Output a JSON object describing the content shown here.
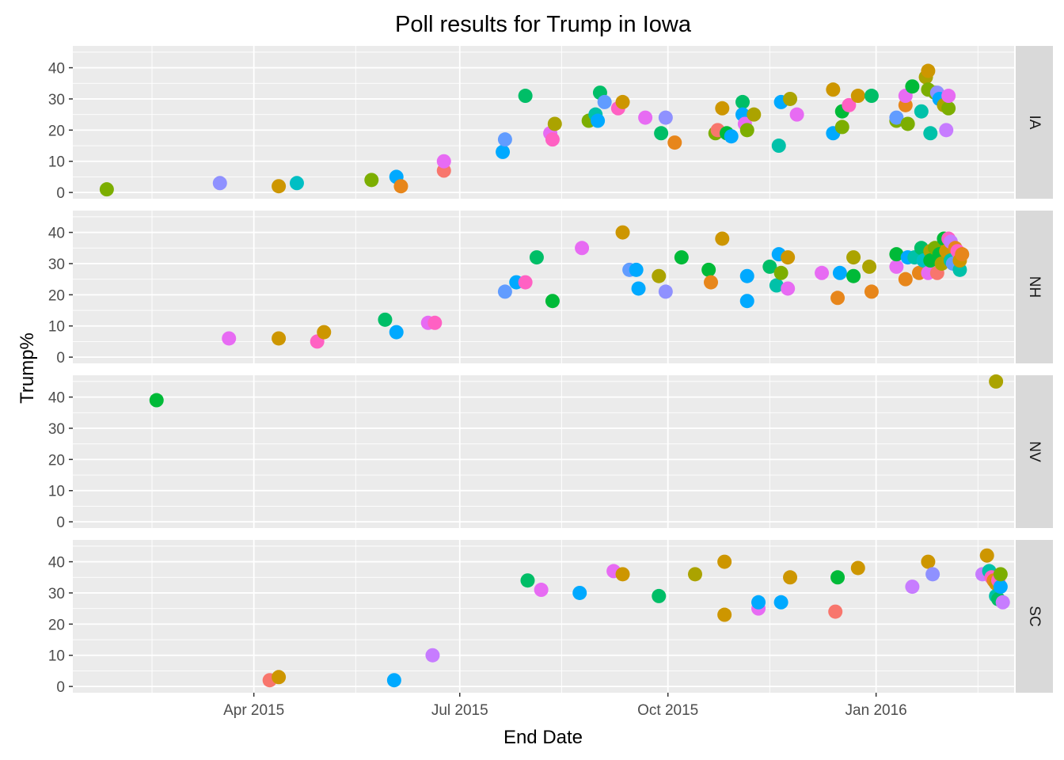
{
  "chart_data": {
    "type": "scatter",
    "title": "Poll results for Trump in Iowa",
    "xlabel": "End Date",
    "ylabel": "Trump%",
    "x_axis": {
      "type": "date",
      "range": [
        "2015-01-11",
        "2016-03-02"
      ],
      "ticks": [
        {
          "date": "2015-04-01",
          "label": "Apr 2015"
        },
        {
          "date": "2015-07-01",
          "label": "Jul 2015"
        },
        {
          "date": "2015-10-01",
          "label": "Oct 2015"
        },
        {
          "date": "2016-01-01",
          "label": "Jan 2016"
        }
      ],
      "minor_ticks": [
        "2015-02-15",
        "2015-05-16",
        "2015-08-15",
        "2015-11-15",
        "2016-02-15"
      ]
    },
    "y_axis": {
      "range": [
        -2,
        47
      ],
      "ticks": [
        0,
        10,
        20,
        30,
        40
      ],
      "minor_ticks": [
        5,
        15,
        25,
        35,
        45
      ]
    },
    "facets": [
      {
        "label": "IA",
        "points": [
          {
            "date": "2015-01-26",
            "y": 1,
            "color": "#7CAE00"
          },
          {
            "date": "2015-03-17",
            "y": 3,
            "color": "#8F91FF"
          },
          {
            "date": "2015-04-12",
            "y": 2,
            "color": "#CD9600"
          },
          {
            "date": "2015-04-20",
            "y": 3,
            "color": "#00BFC4"
          },
          {
            "date": "2015-05-23",
            "y": 4,
            "color": "#7CAE00"
          },
          {
            "date": "2015-06-03",
            "y": 5,
            "color": "#00A9FF"
          },
          {
            "date": "2015-06-05",
            "y": 2,
            "color": "#E7861B"
          },
          {
            "date": "2015-06-24",
            "y": 7,
            "color": "#F8766D"
          },
          {
            "date": "2015-06-24",
            "y": 10,
            "color": "#E76BF3"
          },
          {
            "date": "2015-07-20",
            "y": 13,
            "color": "#00A9FF"
          },
          {
            "date": "2015-07-21",
            "y": 17,
            "color": "#619CFF"
          },
          {
            "date": "2015-07-30",
            "y": 31,
            "color": "#00BE67"
          },
          {
            "date": "2015-08-10",
            "y": 19,
            "color": "#E76BF3"
          },
          {
            "date": "2015-08-11",
            "y": 17,
            "color": "#FF61C3"
          },
          {
            "date": "2015-08-12",
            "y": 22,
            "color": "#ABA300"
          },
          {
            "date": "2015-08-27",
            "y": 23,
            "color": "#7CAE00"
          },
          {
            "date": "2015-08-30",
            "y": 25,
            "color": "#00C1A9"
          },
          {
            "date": "2015-08-31",
            "y": 23,
            "color": "#00A9FF"
          },
          {
            "date": "2015-09-01",
            "y": 32,
            "color": "#00BE67"
          },
          {
            "date": "2015-09-03",
            "y": 29,
            "color": "#619CFF"
          },
          {
            "date": "2015-09-09",
            "y": 27,
            "color": "#FF61C3"
          },
          {
            "date": "2015-09-11",
            "y": 29,
            "color": "#CD9600"
          },
          {
            "date": "2015-09-21",
            "y": 24,
            "color": "#E76BF3"
          },
          {
            "date": "2015-09-28",
            "y": 19,
            "color": "#00BE67"
          },
          {
            "date": "2015-09-30",
            "y": 24,
            "color": "#8F91FF"
          },
          {
            "date": "2015-10-04",
            "y": 16,
            "color": "#E7861B"
          },
          {
            "date": "2015-10-22",
            "y": 19,
            "color": "#7CAE00"
          },
          {
            "date": "2015-10-23",
            "y": 20,
            "color": "#F8766D"
          },
          {
            "date": "2015-10-25",
            "y": 27,
            "color": "#CD9600"
          },
          {
            "date": "2015-10-27",
            "y": 19,
            "color": "#00BA38"
          },
          {
            "date": "2015-10-29",
            "y": 18,
            "color": "#00A9FF"
          },
          {
            "date": "2015-11-03",
            "y": 29,
            "color": "#00BE67"
          },
          {
            "date": "2015-11-03",
            "y": 25,
            "color": "#00A9FF"
          },
          {
            "date": "2015-11-04",
            "y": 22,
            "color": "#E76BF3"
          },
          {
            "date": "2015-11-05",
            "y": 20,
            "color": "#7CAE00"
          },
          {
            "date": "2015-11-08",
            "y": 25,
            "color": "#ABA300"
          },
          {
            "date": "2015-11-19",
            "y": 15,
            "color": "#00C1A9"
          },
          {
            "date": "2015-11-20",
            "y": 29,
            "color": "#00A9FF"
          },
          {
            "date": "2015-11-24",
            "y": 30,
            "color": "#ABA300"
          },
          {
            "date": "2015-11-27",
            "y": 25,
            "color": "#E76BF3"
          },
          {
            "date": "2015-12-13",
            "y": 33,
            "color": "#CD9600"
          },
          {
            "date": "2015-12-13",
            "y": 19,
            "color": "#00A9FF"
          },
          {
            "date": "2015-12-17",
            "y": 21,
            "color": "#7CAE00"
          },
          {
            "date": "2015-12-17",
            "y": 26,
            "color": "#00BA38"
          },
          {
            "date": "2015-12-20",
            "y": 28,
            "color": "#FF61C3"
          },
          {
            "date": "2015-12-24",
            "y": 31,
            "color": "#CD9600"
          },
          {
            "date": "2015-12-30",
            "y": 31,
            "color": "#00BE67"
          },
          {
            "date": "2016-01-10",
            "y": 23,
            "color": "#7CAE00"
          },
          {
            "date": "2016-01-10",
            "y": 24,
            "color": "#619CFF"
          },
          {
            "date": "2016-01-14",
            "y": 28,
            "color": "#E7861B"
          },
          {
            "date": "2016-01-14",
            "y": 31,
            "color": "#E76BF3"
          },
          {
            "date": "2016-01-15",
            "y": 22,
            "color": "#7CAE00"
          },
          {
            "date": "2016-01-17",
            "y": 34,
            "color": "#00BA38"
          },
          {
            "date": "2016-01-21",
            "y": 26,
            "color": "#00C1A9"
          },
          {
            "date": "2016-01-23",
            "y": 37,
            "color": "#ABA300"
          },
          {
            "date": "2016-01-24",
            "y": 39,
            "color": "#CD9600"
          },
          {
            "date": "2016-01-24",
            "y": 33,
            "color": "#7CAE00"
          },
          {
            "date": "2016-01-25",
            "y": 19,
            "color": "#00C1A9"
          },
          {
            "date": "2016-01-27",
            "y": 32,
            "color": "#7CAE00"
          },
          {
            "date": "2016-01-28",
            "y": 32,
            "color": "#8F91FF"
          },
          {
            "date": "2016-01-29",
            "y": 30,
            "color": "#00A9FF"
          },
          {
            "date": "2016-01-31",
            "y": 28,
            "color": "#ABA300"
          },
          {
            "date": "2016-02-01",
            "y": 20,
            "color": "#C77CFF"
          },
          {
            "date": "2016-02-02",
            "y": 27,
            "color": "#7CAE00"
          },
          {
            "date": "2016-02-02",
            "y": 31,
            "color": "#E76BF3"
          }
        ]
      },
      {
        "label": "NH",
        "points": [
          {
            "date": "2015-03-21",
            "y": 6,
            "color": "#E76BF3"
          },
          {
            "date": "2015-04-12",
            "y": 6,
            "color": "#CD9600"
          },
          {
            "date": "2015-04-29",
            "y": 5,
            "color": "#FF61C3"
          },
          {
            "date": "2015-05-02",
            "y": 8,
            "color": "#CD9600"
          },
          {
            "date": "2015-05-29",
            "y": 12,
            "color": "#00BE67"
          },
          {
            "date": "2015-06-03",
            "y": 8,
            "color": "#00A9FF"
          },
          {
            "date": "2015-06-17",
            "y": 11,
            "color": "#E76BF3"
          },
          {
            "date": "2015-06-20",
            "y": 11,
            "color": "#FF61C3"
          },
          {
            "date": "2015-07-21",
            "y": 21,
            "color": "#619CFF"
          },
          {
            "date": "2015-07-26",
            "y": 24,
            "color": "#00A9FF"
          },
          {
            "date": "2015-07-30",
            "y": 24,
            "color": "#FF61C3"
          },
          {
            "date": "2015-08-04",
            "y": 32,
            "color": "#00BE67"
          },
          {
            "date": "2015-08-11",
            "y": 18,
            "color": "#00BA38"
          },
          {
            "date": "2015-08-24",
            "y": 35,
            "color": "#E76BF3"
          },
          {
            "date": "2015-09-11",
            "y": 40,
            "color": "#CD9600"
          },
          {
            "date": "2015-09-14",
            "y": 28,
            "color": "#619CFF"
          },
          {
            "date": "2015-09-17",
            "y": 28,
            "color": "#00A9FF"
          },
          {
            "date": "2015-09-18",
            "y": 22,
            "color": "#00A9FF"
          },
          {
            "date": "2015-09-27",
            "y": 26,
            "color": "#ABA300"
          },
          {
            "date": "2015-09-30",
            "y": 21,
            "color": "#8F91FF"
          },
          {
            "date": "2015-10-07",
            "y": 32,
            "color": "#00BA38"
          },
          {
            "date": "2015-10-19",
            "y": 28,
            "color": "#00BA38"
          },
          {
            "date": "2015-10-20",
            "y": 24,
            "color": "#E7861B"
          },
          {
            "date": "2015-10-25",
            "y": 38,
            "color": "#CD9600"
          },
          {
            "date": "2015-11-05",
            "y": 26,
            "color": "#00A9FF"
          },
          {
            "date": "2015-11-05",
            "y": 18,
            "color": "#00A9FF"
          },
          {
            "date": "2015-11-15",
            "y": 29,
            "color": "#00BE67"
          },
          {
            "date": "2015-11-18",
            "y": 23,
            "color": "#00C1A9"
          },
          {
            "date": "2015-11-19",
            "y": 33,
            "color": "#00A9FF"
          },
          {
            "date": "2015-11-20",
            "y": 27,
            "color": "#7CAE00"
          },
          {
            "date": "2015-11-23",
            "y": 32,
            "color": "#CD9600"
          },
          {
            "date": "2015-11-23",
            "y": 22,
            "color": "#E76BF3"
          },
          {
            "date": "2015-12-08",
            "y": 27,
            "color": "#E76BF3"
          },
          {
            "date": "2015-12-16",
            "y": 27,
            "color": "#00A9FF"
          },
          {
            "date": "2015-12-15",
            "y": 19,
            "color": "#E7861B"
          },
          {
            "date": "2015-12-22",
            "y": 32,
            "color": "#ABA300"
          },
          {
            "date": "2015-12-22",
            "y": 26,
            "color": "#00BA38"
          },
          {
            "date": "2015-12-29",
            "y": 29,
            "color": "#ABA300"
          },
          {
            "date": "2015-12-30",
            "y": 21,
            "color": "#E7861B"
          },
          {
            "date": "2016-01-10",
            "y": 29,
            "color": "#E76BF3"
          },
          {
            "date": "2016-01-10",
            "y": 33,
            "color": "#00BA38"
          },
          {
            "date": "2016-01-14",
            "y": 25,
            "color": "#E7861B"
          },
          {
            "date": "2016-01-15",
            "y": 32,
            "color": "#00A9FF"
          },
          {
            "date": "2016-01-18",
            "y": 32,
            "color": "#00C1A9"
          },
          {
            "date": "2016-01-20",
            "y": 27,
            "color": "#E7861B"
          },
          {
            "date": "2016-01-21",
            "y": 35,
            "color": "#00BE67"
          },
          {
            "date": "2016-01-22",
            "y": 31,
            "color": "#00BFC4"
          },
          {
            "date": "2016-01-24",
            "y": 27,
            "color": "#E76BF3"
          },
          {
            "date": "2016-01-25",
            "y": 34,
            "color": "#ABA300"
          },
          {
            "date": "2016-01-25",
            "y": 31,
            "color": "#00BA38"
          },
          {
            "date": "2016-01-27",
            "y": 35,
            "color": "#7CAE00"
          },
          {
            "date": "2016-01-28",
            "y": 27,
            "color": "#F8766D"
          },
          {
            "date": "2016-01-29",
            "y": 33,
            "color": "#00BA38"
          },
          {
            "date": "2016-01-30",
            "y": 30,
            "color": "#ABA300"
          },
          {
            "date": "2016-01-31",
            "y": 38,
            "color": "#00BA38"
          },
          {
            "date": "2016-02-01",
            "y": 34,
            "color": "#CD9600"
          },
          {
            "date": "2016-02-02",
            "y": 38,
            "color": "#FF61C3"
          },
          {
            "date": "2016-02-03",
            "y": 31,
            "color": "#00C1A9"
          },
          {
            "date": "2016-02-03",
            "y": 37,
            "color": "#C77CFF"
          },
          {
            "date": "2016-02-04",
            "y": 30,
            "color": "#619CFF"
          },
          {
            "date": "2016-02-05",
            "y": 35,
            "color": "#E7861B"
          },
          {
            "date": "2016-02-06",
            "y": 34,
            "color": "#FF61C3"
          },
          {
            "date": "2016-02-07",
            "y": 28,
            "color": "#00C1A9"
          },
          {
            "date": "2016-02-07",
            "y": 31,
            "color": "#CD9600"
          },
          {
            "date": "2016-02-08",
            "y": 33,
            "color": "#E7861B"
          }
        ]
      },
      {
        "label": "NV",
        "points": [
          {
            "date": "2015-02-17",
            "y": 39,
            "color": "#00BA38"
          },
          {
            "date": "2016-02-23",
            "y": 45,
            "color": "#ABA300"
          }
        ]
      },
      {
        "label": "SC",
        "points": [
          {
            "date": "2015-04-08",
            "y": 2,
            "color": "#F8766D"
          },
          {
            "date": "2015-04-12",
            "y": 3,
            "color": "#CD9600"
          },
          {
            "date": "2015-06-02",
            "y": 2,
            "color": "#00A9FF"
          },
          {
            "date": "2015-06-19",
            "y": 10,
            "color": "#C77CFF"
          },
          {
            "date": "2015-07-31",
            "y": 34,
            "color": "#00BE67"
          },
          {
            "date": "2015-08-06",
            "y": 31,
            "color": "#E76BF3"
          },
          {
            "date": "2015-08-23",
            "y": 30,
            "color": "#00A9FF"
          },
          {
            "date": "2015-09-07",
            "y": 37,
            "color": "#E76BF3"
          },
          {
            "date": "2015-09-11",
            "y": 36,
            "color": "#CD9600"
          },
          {
            "date": "2015-09-27",
            "y": 29,
            "color": "#00BE67"
          },
          {
            "date": "2015-10-13",
            "y": 36,
            "color": "#ABA300"
          },
          {
            "date": "2015-10-26",
            "y": 40,
            "color": "#CD9600"
          },
          {
            "date": "2015-10-26",
            "y": 23,
            "color": "#CD9600"
          },
          {
            "date": "2015-11-10",
            "y": 25,
            "color": "#E76BF3"
          },
          {
            "date": "2015-11-10",
            "y": 27,
            "color": "#00A9FF"
          },
          {
            "date": "2015-11-20",
            "y": 27,
            "color": "#00A9FF"
          },
          {
            "date": "2015-11-24",
            "y": 35,
            "color": "#CD9600"
          },
          {
            "date": "2015-12-14",
            "y": 24,
            "color": "#F8766D"
          },
          {
            "date": "2015-12-15",
            "y": 35,
            "color": "#00BA38"
          },
          {
            "date": "2015-12-24",
            "y": 38,
            "color": "#CD9600"
          },
          {
            "date": "2016-01-17",
            "y": 32,
            "color": "#C77CFF"
          },
          {
            "date": "2016-01-24",
            "y": 40,
            "color": "#CD9600"
          },
          {
            "date": "2016-01-26",
            "y": 36,
            "color": "#8F91FF"
          },
          {
            "date": "2016-02-17",
            "y": 36,
            "color": "#C77CFF"
          },
          {
            "date": "2016-02-19",
            "y": 42,
            "color": "#CD9600"
          },
          {
            "date": "2016-02-20",
            "y": 37,
            "color": "#00C1A9"
          },
          {
            "date": "2016-02-21",
            "y": 35,
            "color": "#FF61C3"
          },
          {
            "date": "2016-02-22",
            "y": 34,
            "color": "#E7861B"
          },
          {
            "date": "2016-02-23",
            "y": 33,
            "color": "#CD9600"
          },
          {
            "date": "2016-02-23",
            "y": 29,
            "color": "#00C1A9"
          },
          {
            "date": "2016-02-24",
            "y": 28,
            "color": "#00BE67"
          },
          {
            "date": "2016-02-24",
            "y": 34,
            "color": "#FF61C3"
          },
          {
            "date": "2016-02-25",
            "y": 32,
            "color": "#00A9FF"
          },
          {
            "date": "2016-02-25",
            "y": 36,
            "color": "#7CAE00"
          },
          {
            "date": "2016-02-26",
            "y": 27,
            "color": "#C77CFF"
          }
        ]
      }
    ]
  }
}
